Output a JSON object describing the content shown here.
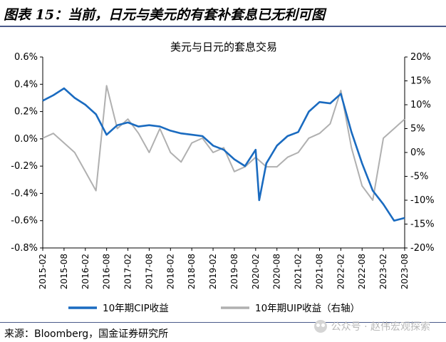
{
  "header": {
    "title": "图表 15：当前，日元与美元的有套补套息已无利可图"
  },
  "footer": {
    "source": "来源：Bloomberg，国金证券研究所"
  },
  "watermark": {
    "text": "公众号 · 赵伟宏观探索",
    "icon": "wechat-icon"
  },
  "colors": {
    "accent": "#4a5a8a",
    "cip": "#1a6bc0",
    "uip": "#b0b0b0"
  },
  "chart_data": {
    "type": "line",
    "title": "美元与日元的套息交易",
    "x_range": [
      "2015-02",
      "2023-08"
    ],
    "x_ticks": [
      "2015-02",
      "2015-08",
      "2016-02",
      "2016-08",
      "2017-02",
      "2017-08",
      "2018-02",
      "2018-08",
      "2019-02",
      "2019-08",
      "2020-02",
      "2020-08",
      "2021-02",
      "2021-08",
      "2022-02",
      "2022-08",
      "2023-02",
      "2023-08"
    ],
    "y_left": {
      "ticks": [
        "0.6%",
        "0.4%",
        "0.2%",
        "0.0%",
        "-0.2%",
        "-0.4%",
        "-0.6%",
        "-0.8%"
      ],
      "range": [
        -0.8,
        0.6
      ]
    },
    "y_right": {
      "ticks": [
        "20%",
        "15%",
        "10%",
        "5%",
        "0%",
        "-5%",
        "-10%",
        "-15%",
        "-20%"
      ],
      "range": [
        -20,
        20
      ]
    },
    "grid": false,
    "legend_position": "bottom",
    "series": [
      {
        "name": "10年期CIP收益",
        "axis": "left",
        "x": [
          "2015-02",
          "2015-05",
          "2015-08",
          "2015-11",
          "2016-02",
          "2016-05",
          "2016-08",
          "2016-11",
          "2017-02",
          "2017-05",
          "2017-08",
          "2017-11",
          "2018-02",
          "2018-05",
          "2018-08",
          "2018-11",
          "2019-02",
          "2019-05",
          "2019-08",
          "2019-11",
          "2020-02",
          "2020-03",
          "2020-05",
          "2020-08",
          "2020-11",
          "2021-02",
          "2021-05",
          "2021-08",
          "2021-11",
          "2022-02",
          "2022-05",
          "2022-08",
          "2022-11",
          "2023-02",
          "2023-05",
          "2023-08"
        ],
        "values": [
          0.28,
          0.32,
          0.37,
          0.3,
          0.25,
          0.18,
          0.03,
          0.1,
          0.12,
          0.09,
          0.1,
          0.09,
          0.06,
          0.04,
          0.03,
          0.02,
          -0.05,
          -0.08,
          -0.15,
          -0.2,
          -0.08,
          -0.45,
          -0.18,
          -0.05,
          0.02,
          0.05,
          0.2,
          0.27,
          0.26,
          0.33,
          0.05,
          -0.18,
          -0.38,
          -0.48,
          -0.6,
          -0.58
        ]
      },
      {
        "name": "10年期UIP收益（右轴）",
        "axis": "right",
        "x": [
          "2015-02",
          "2015-05",
          "2015-08",
          "2015-11",
          "2016-02",
          "2016-05",
          "2016-08",
          "2016-11",
          "2017-02",
          "2017-05",
          "2017-08",
          "2017-11",
          "2018-02",
          "2018-05",
          "2018-08",
          "2018-11",
          "2019-02",
          "2019-05",
          "2019-08",
          "2019-11",
          "2020-02",
          "2020-05",
          "2020-08",
          "2020-11",
          "2021-02",
          "2021-05",
          "2021-08",
          "2021-11",
          "2022-02",
          "2022-05",
          "2022-08",
          "2022-11",
          "2023-02",
          "2023-05",
          "2023-08"
        ],
        "values": [
          3,
          4,
          2,
          0,
          -4,
          -8,
          14,
          5,
          7,
          4,
          0,
          5,
          0,
          -2,
          2,
          3,
          0,
          1,
          -4,
          -3,
          -1,
          -3,
          -3,
          -1,
          0,
          3,
          4,
          6,
          13,
          1,
          -7,
          -10,
          3,
          5,
          7
        ]
      }
    ]
  }
}
